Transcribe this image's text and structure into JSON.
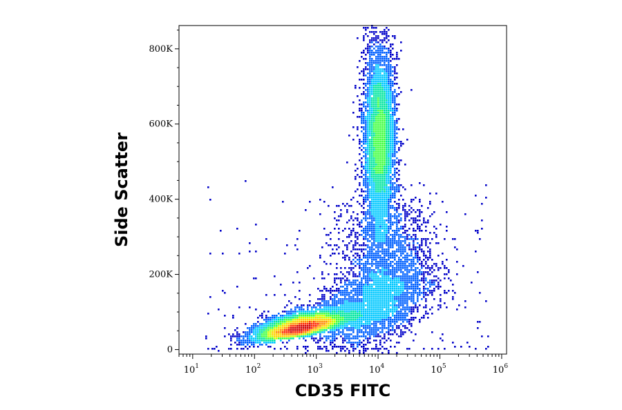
{
  "chart_data": {
    "type": "scatter",
    "title": "",
    "xlabel": "CD35 FITC",
    "ylabel": "Side Scatter",
    "x_scale": "log",
    "xlim": [
      6,
      1200000
    ],
    "ylim": [
      -12000,
      862000
    ],
    "x_ticks": [
      {
        "base": "10",
        "exp": "1",
        "value": 10
      },
      {
        "base": "10",
        "exp": "2",
        "value": 100
      },
      {
        "base": "10",
        "exp": "3",
        "value": 1000
      },
      {
        "base": "10",
        "exp": "4",
        "value": 10000
      },
      {
        "base": "10",
        "exp": "5",
        "value": 100000
      },
      {
        "base": "10",
        "exp": "6",
        "value": 1000000
      }
    ],
    "y_ticks": [
      {
        "label": "0",
        "value": 0
      },
      {
        "label": "200K",
        "value": 200000
      },
      {
        "label": "400K",
        "value": 400000
      },
      {
        "label": "600K",
        "value": 600000
      },
      {
        "label": "800K",
        "value": 800000
      }
    ],
    "grid": false,
    "legend": "none",
    "color_scale": [
      "#0000c8",
      "#0060ff",
      "#00c8ff",
      "#00e6a0",
      "#40ff40",
      "#c8ff00",
      "#ffd200",
      "#ff8c00",
      "#ff2800",
      "#d20000"
    ],
    "populations": [
      {
        "center_x": 550,
        "center_y": 55000,
        "spread_log10_x": 0.38,
        "spread_y": 30000,
        "peak_density": "high"
      },
      {
        "center_x": 10500,
        "center_y": 555000,
        "spread_log10_x": 0.13,
        "spread_y": 130000,
        "peak_density": "high"
      },
      {
        "center_x": 9000,
        "center_y": 120000,
        "spread_log10_x": 0.45,
        "spread_y": 55000,
        "peak_density": "medium"
      },
      {
        "center_x": 14000,
        "center_y": 270000,
        "spread_log10_x": 0.4,
        "spread_y": 70000,
        "peak_density": "low"
      }
    ]
  }
}
